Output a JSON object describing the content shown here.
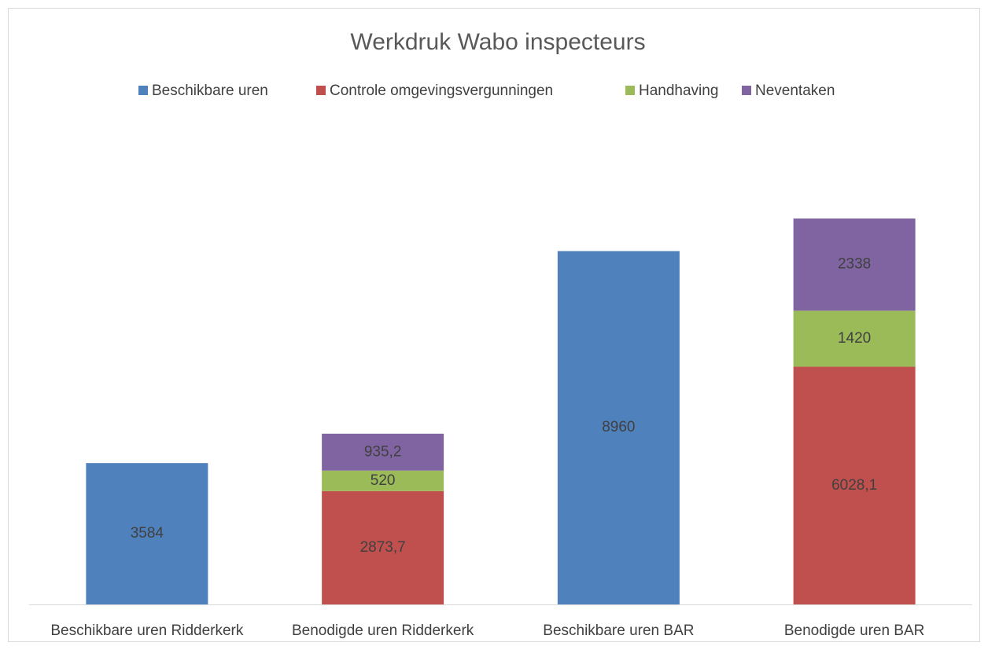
{
  "chart_data": {
    "type": "stacked_bar",
    "title": "Werkdruk Wabo inspecteurs",
    "categories": [
      "Beschikbare uren Ridderkerk",
      "Benodigde uren Ridderkerk",
      "Beschikbare uren BAR",
      "Benodigde uren BAR"
    ],
    "series": [
      {
        "name": "Beschikbare uren",
        "color": "#4f81bd",
        "values": [
          3584,
          null,
          8960,
          null
        ],
        "value_labels": [
          "3584",
          null,
          "8960",
          null
        ]
      },
      {
        "name": "Controle omgevingsvergunningen",
        "color": "#c0504d",
        "values": [
          null,
          2873.7,
          null,
          6028.1
        ],
        "value_labels": [
          null,
          "2873,7",
          null,
          "6028,1"
        ]
      },
      {
        "name": "Handhaving",
        "color": "#9bbb59",
        "values": [
          null,
          520,
          null,
          1420
        ],
        "value_labels": [
          null,
          "520",
          null,
          "1420"
        ]
      },
      {
        "name": "Neventaken",
        "color": "#8064a2",
        "values": [
          null,
          935.2,
          null,
          2338
        ],
        "value_labels": [
          null,
          "935,2",
          null,
          "2338"
        ]
      }
    ],
    "legend": "top"
  }
}
